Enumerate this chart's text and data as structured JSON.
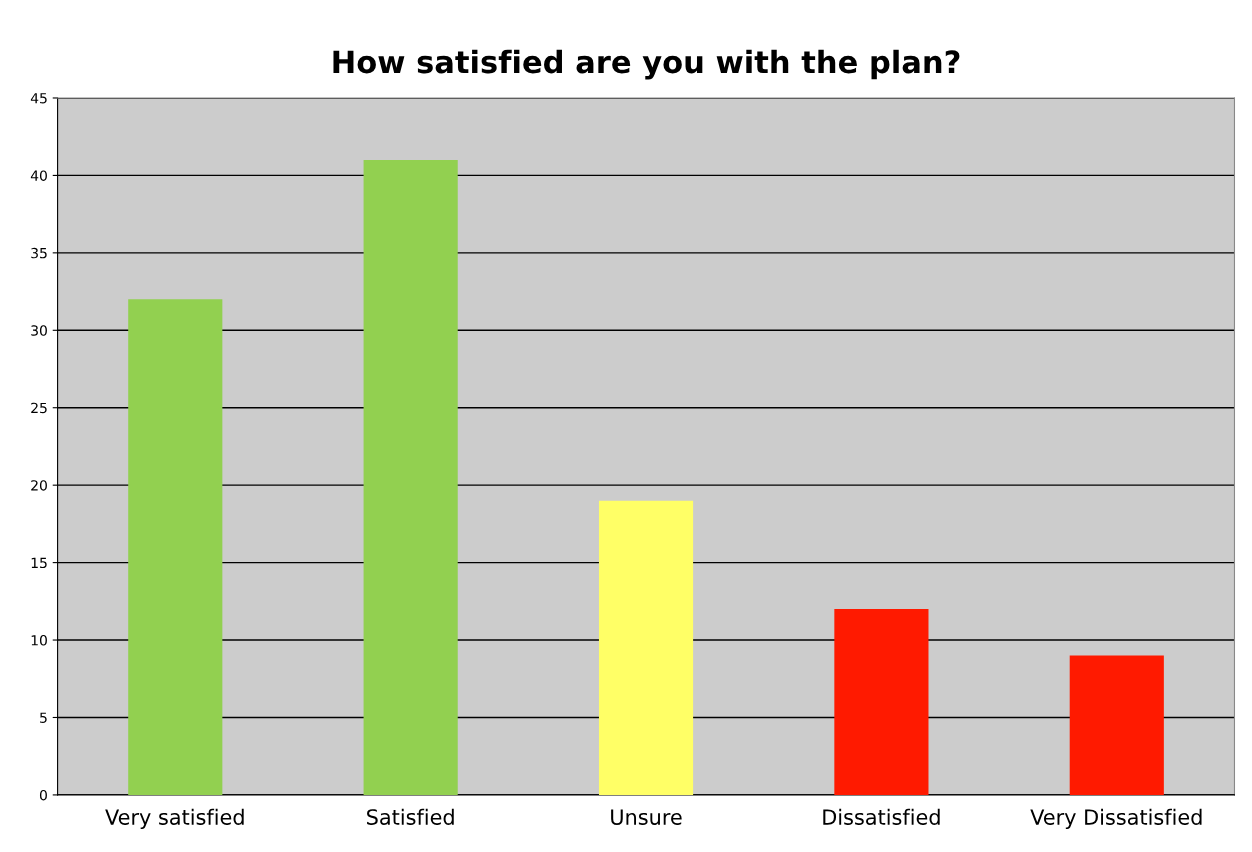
{
  "chart_data": {
    "type": "bar",
    "title": "How satisfied are you with the plan?",
    "categories": [
      "Very satisfied",
      "Satisfied",
      "Unsure",
      "Dissatisfied",
      "Very Dissatisfied"
    ],
    "values": [
      32,
      41,
      19,
      12,
      9
    ],
    "colors": [
      "#92d050",
      "#92d050",
      "#ffff66",
      "#ff1a00",
      "#ff1a00"
    ],
    "ylim": [
      0,
      45
    ],
    "yticks": [
      0,
      5,
      10,
      15,
      20,
      25,
      30,
      35,
      40,
      45
    ],
    "grid": "y"
  }
}
